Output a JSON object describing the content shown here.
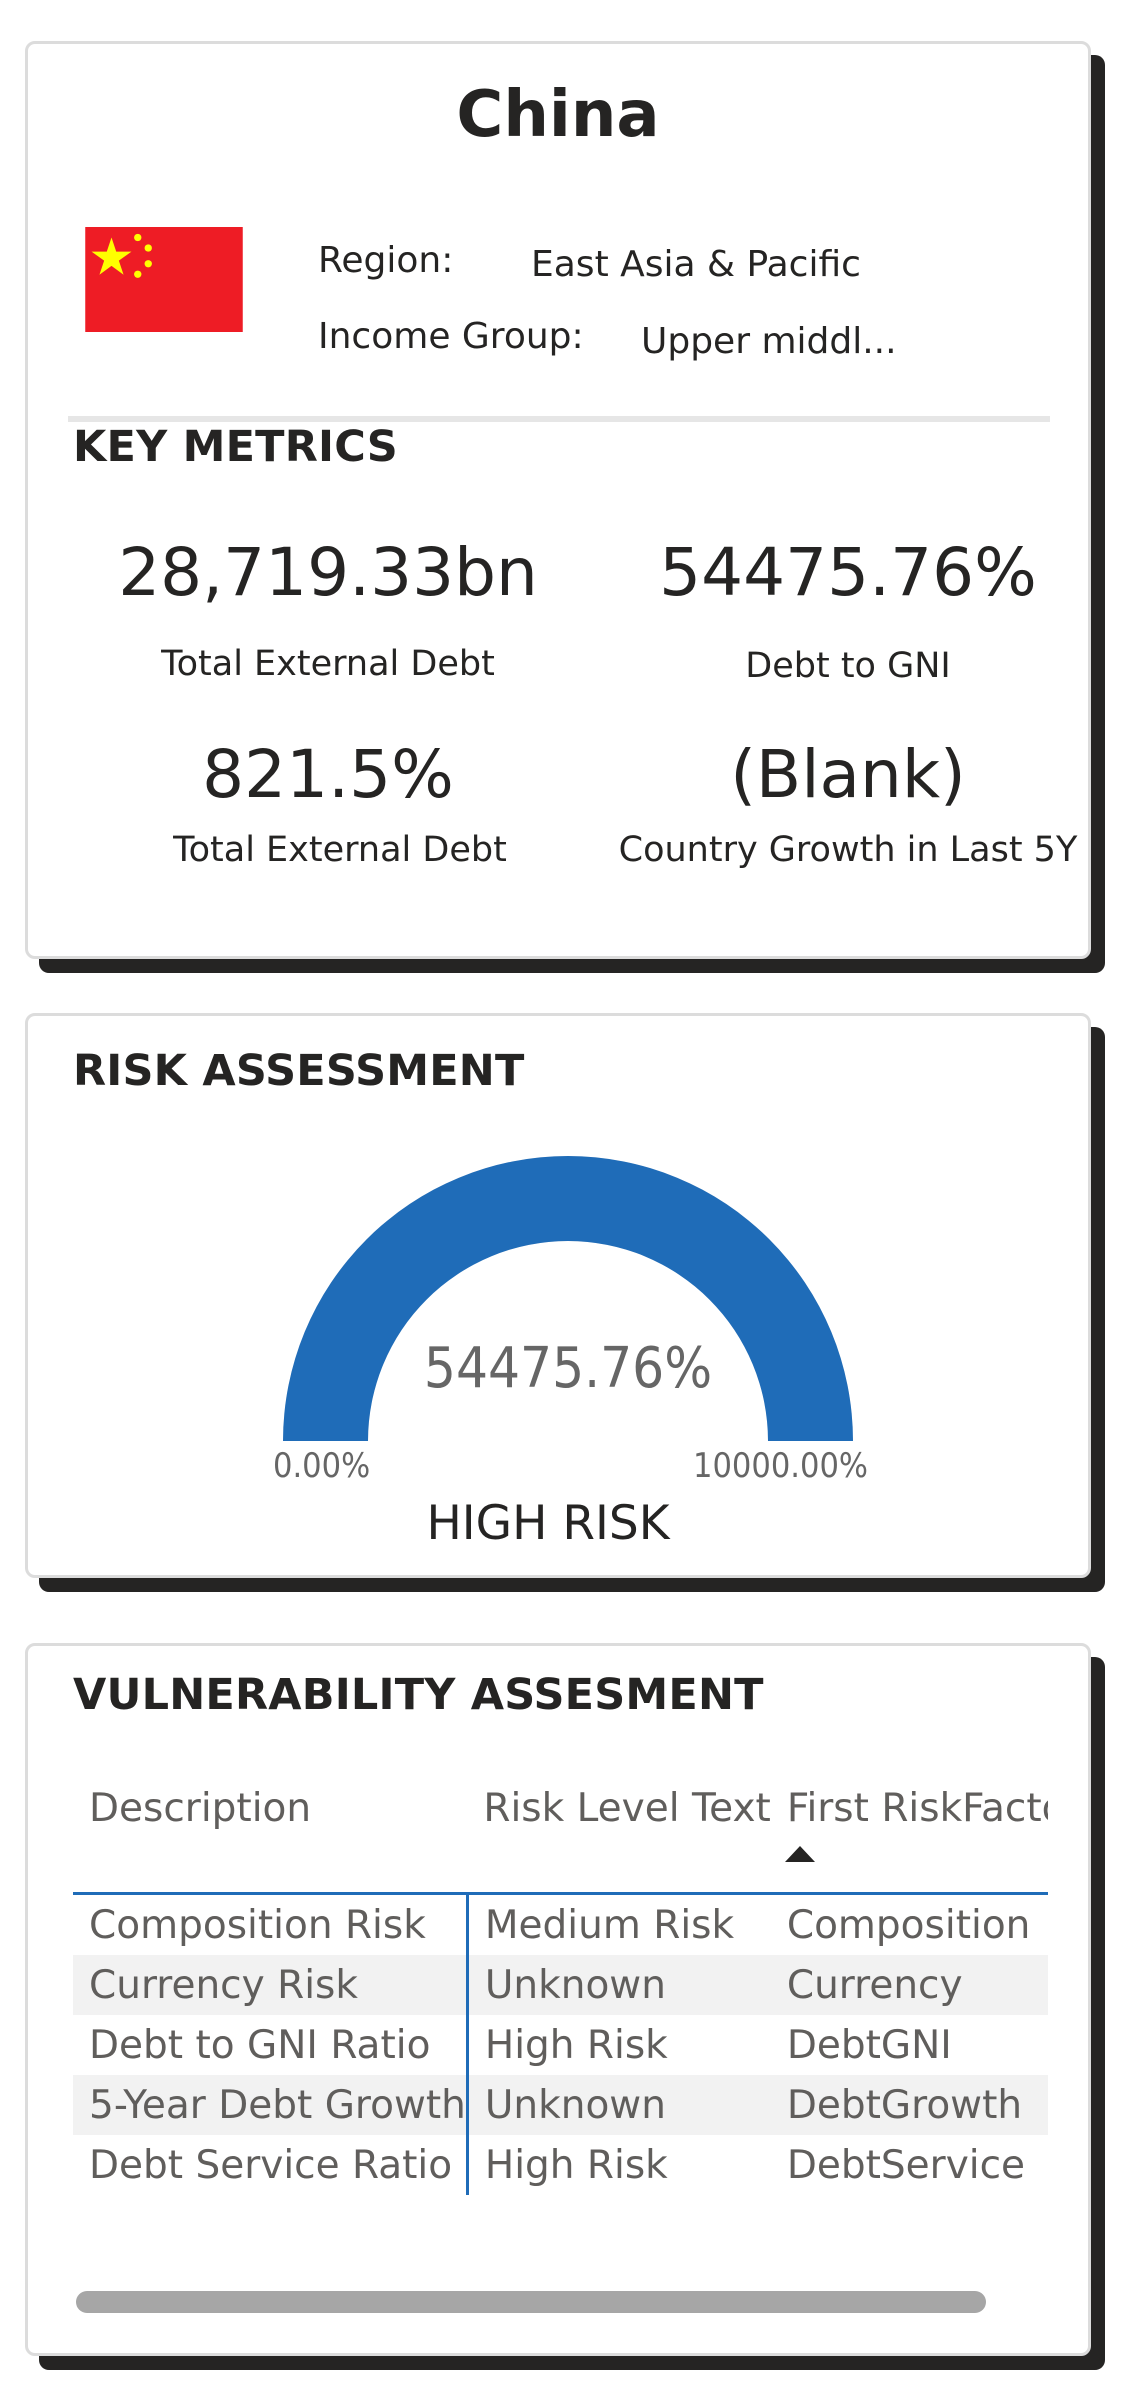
{
  "country": {
    "name": "China",
    "region_label": "Region:",
    "region_value": "East Asia & Pacific",
    "income_label": "Income Group:",
    "income_value": "Upper middl...",
    "flag_colors": {
      "field": "#EE1C25",
      "stars": "#FFFF00"
    }
  },
  "key_metrics": {
    "title": "KEY METRICS",
    "items": [
      {
        "value": "28,719.33bn",
        "label": "Total External Debt"
      },
      {
        "value": "54475.76%",
        "label": "Debt to GNI"
      },
      {
        "value": "821.5%",
        "label": "Total External Debt"
      },
      {
        "value": "(Blank)",
        "label": "Country Growth in Last 5Y"
      }
    ]
  },
  "risk_assessment": {
    "title": "RISK ASSESSMENT",
    "gauge": {
      "value_label": "54475.76%",
      "min_label": "0.00%",
      "max_label": "10000.00%",
      "value": 54475.76,
      "min": 0,
      "max": 10000,
      "fill_color": "#1F6CB8"
    },
    "status": "HIGH RISK"
  },
  "vulnerability": {
    "title": "VULNERABILITY ASSESMENT",
    "columns": [
      "Description",
      "Risk Level Text",
      "First RiskFacto"
    ],
    "rows": [
      [
        "Composition Risk",
        "Medium Risk",
        "Composition"
      ],
      [
        "Currency Risk",
        "Unknown",
        "Currency"
      ],
      [
        "Debt to GNI Ratio",
        "High Risk",
        "DebtGNI"
      ],
      [
        "5-Year Debt Growth",
        "Unknown",
        "DebtGrowth"
      ],
      [
        "Debt Service Ratio",
        "High Risk",
        "DebtService"
      ]
    ],
    "sort_icon": "sort-ascending-icon"
  }
}
